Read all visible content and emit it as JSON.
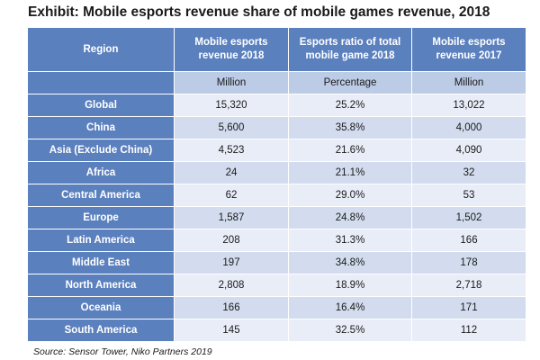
{
  "title": "Exhibit: Mobile esports revenue share of mobile games revenue, 2018",
  "source": "Source: Sensor Tower, Niko Partners 2019",
  "columns": [
    {
      "lines": [
        "Region"
      ]
    },
    {
      "lines": [
        "Mobile esports",
        "revenue 2018"
      ]
    },
    {
      "lines": [
        "Esports ratio of total",
        "mobile game 2018"
      ]
    },
    {
      "lines": [
        "Mobile esports",
        "revenue 2017"
      ]
    }
  ],
  "units": [
    "Million",
    "Percentage",
    "Million"
  ],
  "rows": [
    {
      "region": "Global",
      "rev2018": "15,320",
      "ratio2018": "25.2%",
      "rev2017": "13,022"
    },
    {
      "region": "China",
      "rev2018": "5,600",
      "ratio2018": "35.8%",
      "rev2017": "4,000"
    },
    {
      "region": "Asia (Exclude China)",
      "rev2018": "4,523",
      "ratio2018": "21.6%",
      "rev2017": "4,090"
    },
    {
      "region": "Africa",
      "rev2018": "24",
      "ratio2018": "21.1%",
      "rev2017": "32"
    },
    {
      "region": "Central America",
      "rev2018": "62",
      "ratio2018": "29.0%",
      "rev2017": "53"
    },
    {
      "region": "Europe",
      "rev2018": "1,587",
      "ratio2018": "24.8%",
      "rev2017": "1,502"
    },
    {
      "region": "Latin America",
      "rev2018": "208",
      "ratio2018": "31.3%",
      "rev2017": "166"
    },
    {
      "region": "Middle East",
      "rev2018": "197",
      "ratio2018": "34.8%",
      "rev2017": "178"
    },
    {
      "region": "North America",
      "rev2018": "2,808",
      "ratio2018": "18.9%",
      "rev2017": "2,718"
    },
    {
      "region": "Oceania",
      "rev2018": "166",
      "ratio2018": "16.4%",
      "rev2017": "171"
    },
    {
      "region": "South America",
      "rev2018": "145",
      "ratio2018": "32.5%",
      "rev2017": "112"
    }
  ],
  "chart_data": {
    "type": "table",
    "title": "Exhibit: Mobile esports revenue share of mobile games revenue, 2018",
    "columns": [
      "Region",
      "Mobile esports revenue 2018",
      "Esports ratio of total mobile game 2018",
      "Mobile esports revenue 2017"
    ],
    "units": [
      "",
      "Million",
      "Percentage",
      "Million"
    ],
    "categories": [
      "Global",
      "China",
      "Asia (Exclude China)",
      "Africa",
      "Central America",
      "Europe",
      "Latin America",
      "Middle East",
      "North America",
      "Oceania",
      "South America"
    ],
    "series": [
      {
        "name": "Mobile esports revenue 2018 (Million)",
        "values": [
          15320,
          5600,
          4523,
          24,
          62,
          1587,
          208,
          197,
          2808,
          166,
          145
        ]
      },
      {
        "name": "Esports ratio of total mobile game 2018 (%)",
        "values": [
          25.2,
          35.8,
          21.6,
          21.1,
          29.0,
          24.8,
          31.3,
          34.8,
          18.9,
          16.4,
          32.5
        ]
      },
      {
        "name": "Mobile esports revenue 2017 (Million)",
        "values": [
          13022,
          4000,
          4090,
          32,
          53,
          1502,
          166,
          178,
          2718,
          171,
          112
        ]
      }
    ],
    "source": "Source: Sensor Tower, Niko Partners 2019"
  },
  "colors": {
    "header_bg": "#5b80be",
    "units_bg": "#bccbe6",
    "row_odd_bg": "#d2dcee",
    "row_even_bg": "#e8edf7",
    "header_text": "#ffffff",
    "body_text": "#1a1a1a"
  }
}
